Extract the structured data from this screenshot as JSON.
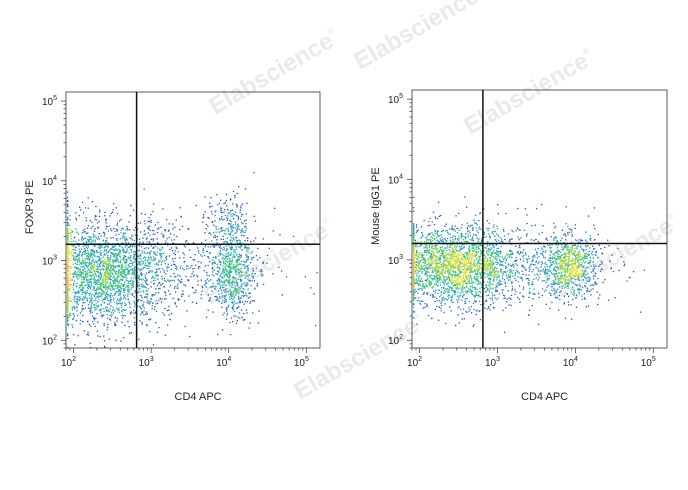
{
  "watermark": {
    "text": "Elabscience",
    "reg": "®"
  },
  "chart_data": [
    {
      "type": "scatter",
      "xlabel": "CD4 APC",
      "ylabel": "FOXP3 PE",
      "xscale": "log",
      "yscale": "log",
      "xlim": [
        80,
        150000
      ],
      "ylim": [
        80,
        130000
      ],
      "xticks": [
        {
          "base": "10",
          "exp": "2",
          "v": 100
        },
        {
          "base": "10",
          "exp": "3",
          "v": 1000
        },
        {
          "base": "10",
          "exp": "4",
          "v": 10000
        },
        {
          "base": "10",
          "exp": "5",
          "v": 100000
        }
      ],
      "yticks": [
        {
          "base": "10",
          "exp": "2",
          "v": 100
        },
        {
          "base": "10",
          "exp": "3",
          "v": 1000
        },
        {
          "base": "10",
          "exp": "4",
          "v": 10000
        },
        {
          "base": "10",
          "exp": "5",
          "v": 100000
        }
      ],
      "gates": {
        "x": 650,
        "y": 1600
      },
      "populations": [
        {
          "cx": 230,
          "cy": 700,
          "sx": 0.28,
          "sy": 0.2,
          "n": 2400
        },
        {
          "cx": 11000,
          "cy": 750,
          "sx": 0.09,
          "sy": 0.18,
          "n": 650
        },
        {
          "cx": 10000,
          "cy": 3300,
          "sx": 0.09,
          "sy": 0.11,
          "n": 130
        },
        {
          "cx": 2000,
          "cy": 900,
          "sx": 0.4,
          "sy": 0.22,
          "n": 420
        }
      ],
      "grid": false,
      "colormap": "pseudocolor density"
    },
    {
      "type": "scatter",
      "xlabel": "CD4 APC",
      "ylabel": "Mouse IgG1 PE",
      "xscale": "log",
      "yscale": "log",
      "xlim": [
        80,
        150000
      ],
      "ylim": [
        80,
        130000
      ],
      "xticks": [
        {
          "base": "10",
          "exp": "2",
          "v": 100
        },
        {
          "base": "10",
          "exp": "3",
          "v": 1000
        },
        {
          "base": "10",
          "exp": "4",
          "v": 10000
        },
        {
          "base": "10",
          "exp": "5",
          "v": 100000
        }
      ],
      "yticks": [
        {
          "base": "10",
          "exp": "2",
          "v": 100
        },
        {
          "base": "10",
          "exp": "3",
          "v": 1000
        },
        {
          "base": "10",
          "exp": "4",
          "v": 10000
        },
        {
          "base": "10",
          "exp": "5",
          "v": 100000
        }
      ],
      "gates": {
        "x": 650,
        "y": 1600
      },
      "populations": [
        {
          "cx": 260,
          "cy": 850,
          "sx": 0.27,
          "sy": 0.15,
          "n": 2300
        },
        {
          "cx": 8500,
          "cy": 830,
          "sx": 0.12,
          "sy": 0.12,
          "n": 750
        },
        {
          "cx": 2000,
          "cy": 900,
          "sx": 0.4,
          "sy": 0.18,
          "n": 380
        }
      ],
      "grid": false,
      "colormap": "pseudocolor density"
    }
  ]
}
